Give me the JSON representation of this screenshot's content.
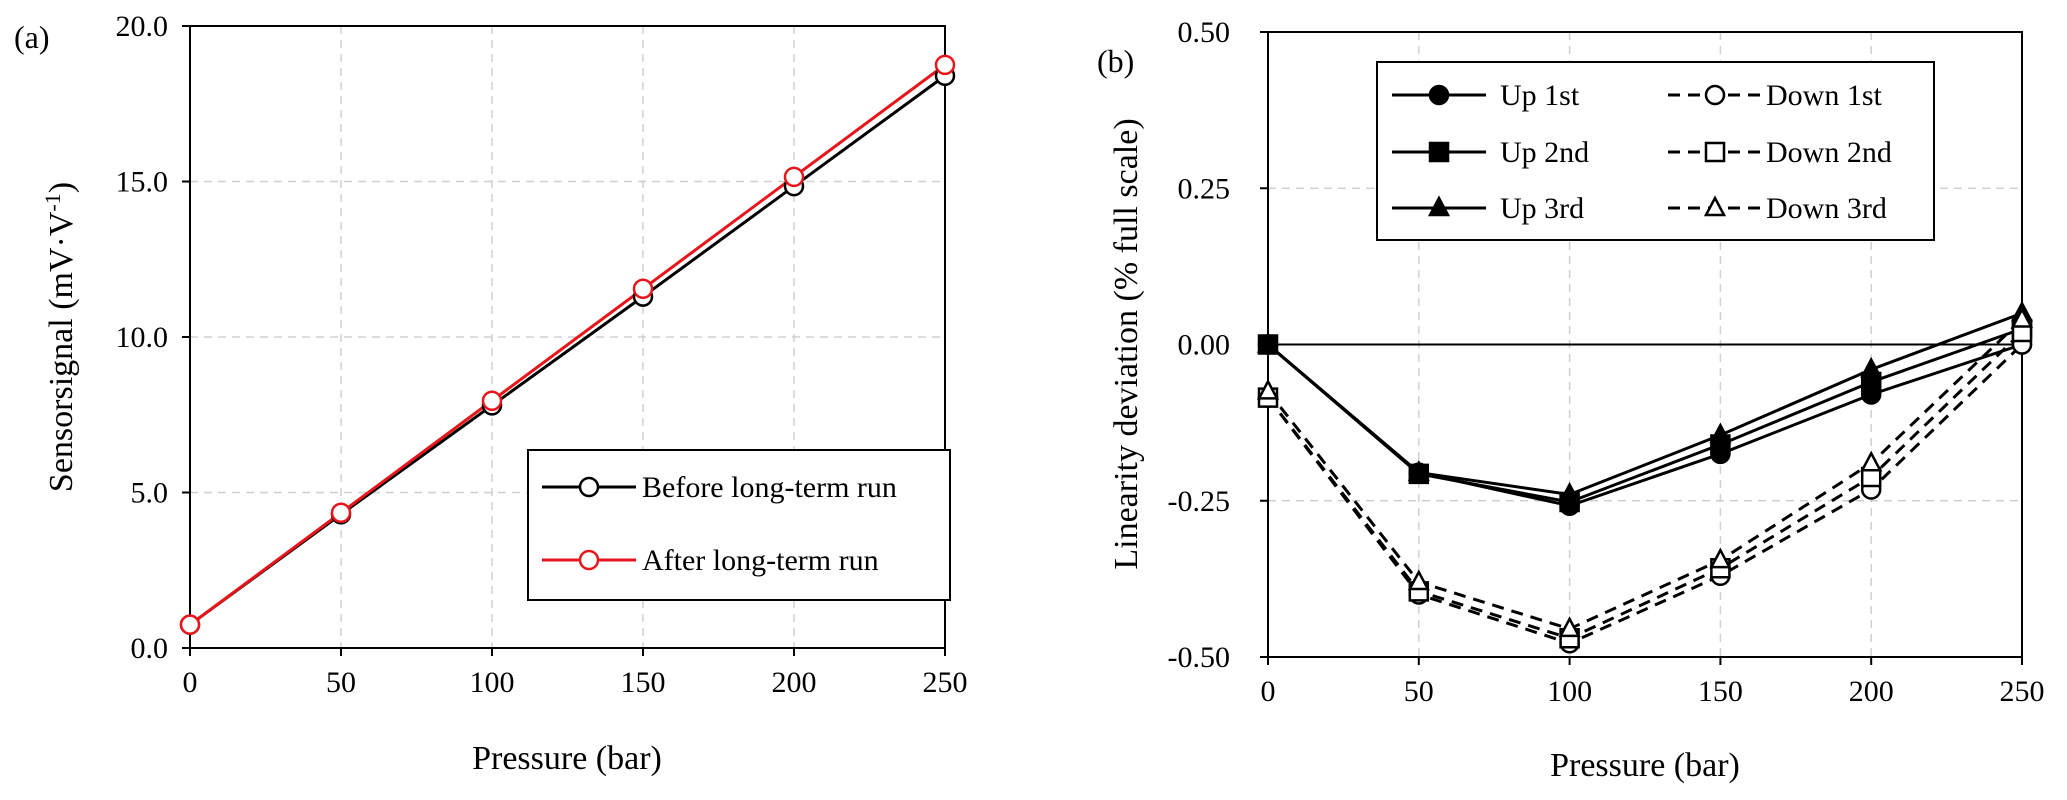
{
  "chart_data": [
    {
      "type": "line",
      "panel_label": "(a)",
      "title": "",
      "xlabel": "Pressure (bar)",
      "ylabel": "Sensorsignal (mV·V⁻¹)",
      "xlim": [
        0,
        250
      ],
      "ylim": [
        0,
        20
      ],
      "x": [
        0,
        50,
        100,
        150,
        200,
        250
      ],
      "x_ticks": [
        "0",
        "50",
        "100",
        "150",
        "200",
        "250"
      ],
      "y_ticks": [
        "0.0",
        "5.0",
        "10.0",
        "15.0",
        "20.0"
      ],
      "grid": true,
      "legend_position": "bottom-right",
      "series": [
        {
          "name": "Before long-term run",
          "color": "#000000",
          "marker": "open-circle",
          "dash": "solid",
          "values": [
            0.75,
            4.3,
            7.8,
            11.3,
            14.85,
            18.4
          ]
        },
        {
          "name": "After long-term run",
          "color": "#e8161b",
          "marker": "open-circle",
          "dash": "solid",
          "values": [
            0.75,
            4.35,
            7.95,
            11.55,
            15.15,
            18.75
          ]
        }
      ]
    },
    {
      "type": "line",
      "panel_label": "(b)",
      "title": "",
      "xlabel": "Pressure (bar)",
      "ylabel": "Linearity deviation (% full scale)",
      "xlim": [
        0,
        250
      ],
      "ylim": [
        -0.5,
        0.5
      ],
      "x": [
        0,
        50,
        100,
        150,
        200,
        250
      ],
      "x_ticks": [
        "0",
        "50",
        "100",
        "150",
        "200",
        "250"
      ],
      "y_ticks": [
        "-0.50",
        "-0.25",
        "0.00",
        "0.25",
        "0.50"
      ],
      "grid": true,
      "legend_position": "top-center",
      "series": [
        {
          "name": "Up 1st",
          "color": "#000000",
          "marker": "filled-circle",
          "dash": "solid",
          "values": [
            0.0,
            -0.205,
            -0.258,
            -0.175,
            -0.08,
            0.0
          ]
        },
        {
          "name": "Up 2nd",
          "color": "#000000",
          "marker": "filled-square",
          "dash": "solid",
          "values": [
            0.0,
            -0.207,
            -0.252,
            -0.16,
            -0.06,
            0.025
          ]
        },
        {
          "name": "Up 3rd",
          "color": "#000000",
          "marker": "filled-triangle",
          "dash": "solid",
          "values": [
            0.0,
            -0.205,
            -0.24,
            -0.145,
            -0.04,
            0.05
          ]
        },
        {
          "name": "Down 1st",
          "color": "#000000",
          "marker": "open-circle",
          "dash": "dashed",
          "values": [
            -0.085,
            -0.4,
            -0.478,
            -0.37,
            -0.232,
            0.0
          ]
        },
        {
          "name": "Down 2nd",
          "color": "#000000",
          "marker": "open-square",
          "dash": "dashed",
          "values": [
            -0.085,
            -0.395,
            -0.47,
            -0.358,
            -0.212,
            0.02
          ]
        },
        {
          "name": "Down 3rd",
          "color": "#000000",
          "marker": "open-triangle",
          "dash": "dashed",
          "values": [
            -0.075,
            -0.38,
            -0.455,
            -0.345,
            -0.19,
            0.04
          ]
        }
      ]
    }
  ]
}
